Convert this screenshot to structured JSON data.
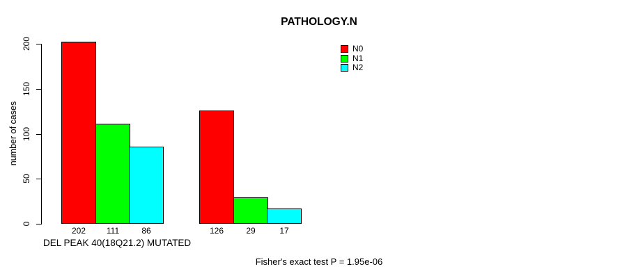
{
  "chart_data": {
    "type": "bar",
    "title": "PATHOLOGY.N",
    "xlabel": "DEL PEAK 40(18Q21.2) MUTATED",
    "ylabel": "number of cases",
    "ylim": [
      0,
      205
    ],
    "yticks": [
      0,
      50,
      100,
      150,
      200
    ],
    "grid": false,
    "legend_position": "top-right",
    "value_labels_under_bars": true,
    "series": [
      {
        "name": "N0",
        "color": "#ff0000",
        "values": [
          202,
          126
        ]
      },
      {
        "name": "N1",
        "color": "#00ff00",
        "values": [
          111,
          29
        ]
      },
      {
        "name": "N2",
        "color": "#00ffff",
        "values": [
          86,
          17
        ]
      }
    ],
    "annotation": "Fisher's exact test P = 1.95e-06"
  }
}
